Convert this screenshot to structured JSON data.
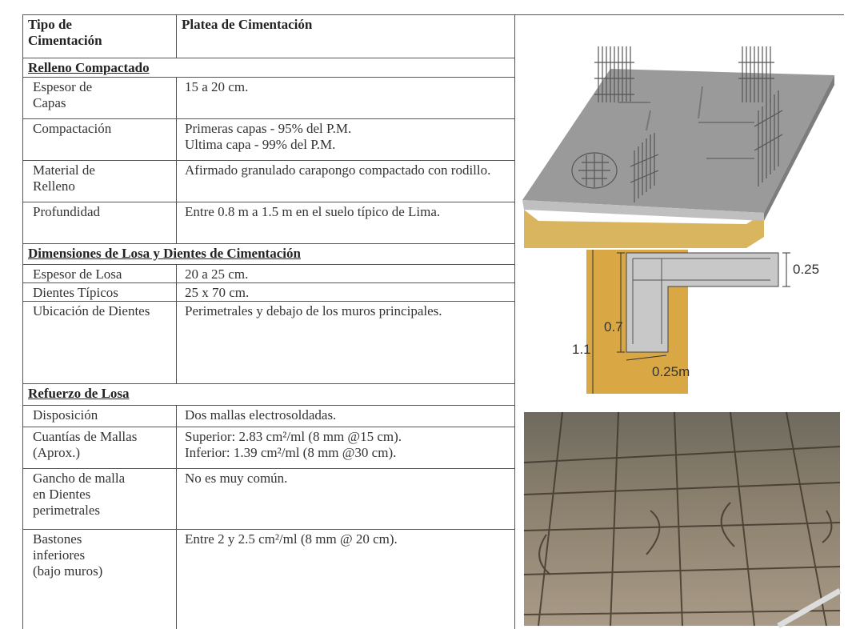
{
  "table": {
    "header": [
      "Tipo de\nCimentación",
      "Platea de Cimentación"
    ],
    "sections": [
      {
        "title": "Relleno Compactado",
        "rows": [
          [
            "Espesor de\nCapas",
            "15 a 20 cm."
          ],
          [
            "Compactación",
            "Primeras capas - 95% del P.M.\nUltima capa - 99% del P.M."
          ],
          [
            "Material de\nRelleno",
            "Afirmado granulado carapongo compactado con rodillo."
          ],
          [
            "Profundidad",
            "Entre 0.8 m a 1.5 m en el suelo típico de Lima."
          ]
        ]
      },
      {
        "title": "Dimensiones de Losa y Dientes de Cimentación",
        "rows": [
          [
            "Espesor de Losa",
            "20  a 25 cm."
          ],
          [
            "Dientes Típicos",
            "25 x 70 cm."
          ],
          [
            "Ubicación de Dientes",
            "Perimetrales y debajo de los muros principales."
          ]
        ]
      },
      {
        "title": "Refuerzo de Losa",
        "rows": [
          [
            "Disposición",
            "Dos mallas electrosoldadas."
          ],
          [
            "Cuantías de Mallas (Aprox.)",
            "Superior: 2.83 cm²/ml (8 mm @15 cm).\nInferior: 1.39 cm²/ml (8 mm @30 cm)."
          ],
          [
            "Gancho de malla\nen Dientes\nperimetrales",
            "No es muy común."
          ],
          [
            "Bastones\ninferiores\n(bajo muros)",
            "Entre 2 y 2.5 cm²/ml (8 mm @ 20 cm)."
          ]
        ]
      }
    ]
  },
  "section_diagram": {
    "labels": [
      "0.25",
      "0.7",
      "1.1",
      "0.25m"
    ]
  }
}
